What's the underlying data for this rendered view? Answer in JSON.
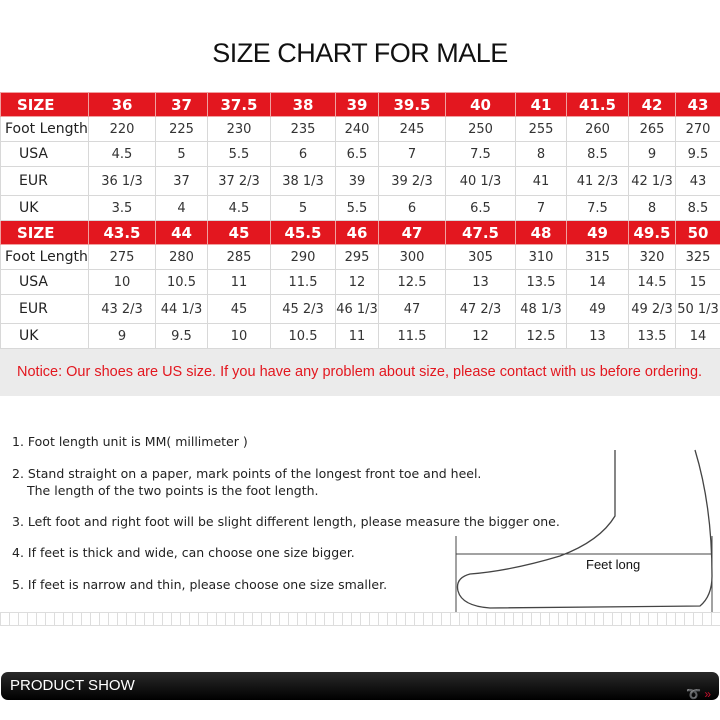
{
  "title": "SIZE CHART FOR MALE",
  "table1": {
    "header": [
      "SIZE",
      "36",
      "37",
      "37.5",
      "38",
      "39",
      "39.5",
      "40",
      "41",
      "41.5",
      "42",
      "43"
    ],
    "rows": [
      [
        "Foot Length",
        "220",
        "225",
        "230",
        "235",
        "240",
        "245",
        "250",
        "255",
        "260",
        "265",
        "270"
      ],
      [
        "USA",
        "4.5",
        "5",
        "5.5",
        "6",
        "6.5",
        "7",
        "7.5",
        "8",
        "8.5",
        "9",
        "9.5"
      ],
      [
        "EUR",
        "36 1/3",
        "37",
        "37 2/3",
        "38 1/3",
        "39",
        "39 2/3",
        "40 1/3",
        "41",
        "41 2/3",
        "42 1/3",
        "43"
      ],
      [
        "UK",
        "3.5",
        "4",
        "4.5",
        "5",
        "5.5",
        "6",
        "6.5",
        "7",
        "7.5",
        "8",
        "8.5"
      ]
    ]
  },
  "table2": {
    "header": [
      "SIZE",
      "43.5",
      "44",
      "45",
      "45.5",
      "46",
      "47",
      "47.5",
      "48",
      "49",
      "49.5",
      "50"
    ],
    "rows": [
      [
        "Foot Length",
        "275",
        "280",
        "285",
        "290",
        "295",
        "300",
        "305",
        "310",
        "315",
        "320",
        "325"
      ],
      [
        "USA",
        "10",
        "10.5",
        "11",
        "11.5",
        "12",
        "12.5",
        "13",
        "13.5",
        "14",
        "14.5",
        "15"
      ],
      [
        "EUR",
        "43 2/3",
        "44 1/3",
        "45",
        "45 2/3",
        "46 1/3",
        "47",
        "47 2/3",
        "48 1/3",
        "49",
        "49 2/3",
        "50 1/3"
      ],
      [
        "UK",
        "9",
        "9.5",
        "10",
        "10.5",
        "11",
        "11.5",
        "12",
        "12.5",
        "13",
        "13.5",
        "14"
      ]
    ]
  },
  "notice": "Notice: Our shoes are US size. If you have any problem about size, please contact with us before ordering.",
  "steps": [
    "1. Foot length unit is MM( millimeter )",
    "2. Stand straight on a paper, mark points of the longest front toe and heel.",
    "The length of the two points is the foot length.",
    "3. Left foot and right foot will be slight different length, please measure the bigger one.",
    "4. If feet is thick and wide, can choose one size bigger.",
    "5. If feet is narrow and thin, please choose one size smaller."
  ],
  "diagram_label": "Feet long",
  "product_bar": "PRODUCT SHOW",
  "colors": {
    "accent": "#e3171f",
    "notice_bg": "#ebebeb"
  }
}
